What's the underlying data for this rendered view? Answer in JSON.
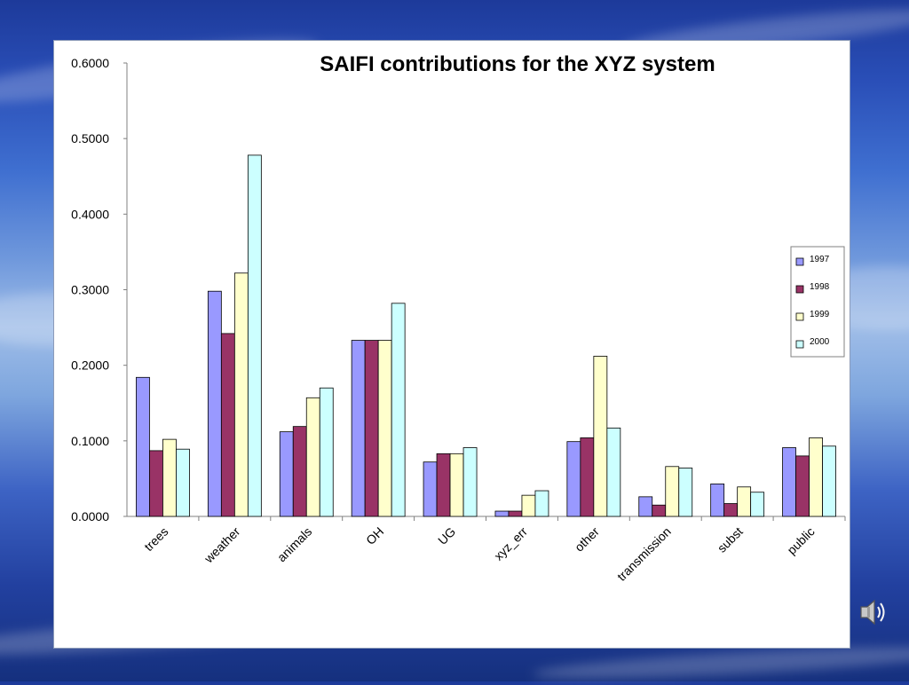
{
  "chart_data": {
    "type": "bar",
    "title": "SAIFI contributions for the XYZ system",
    "xlabel": "",
    "ylabel": "",
    "ylim": [
      0,
      0.6
    ],
    "y_ticks": [
      "0.0000",
      "0.1000",
      "0.2000",
      "0.3000",
      "0.4000",
      "0.5000",
      "0.6000"
    ],
    "categories": [
      "trees",
      "weather",
      "animals",
      "OH",
      "UG",
      "xyz_err",
      "other",
      "transmission",
      "subst",
      "public"
    ],
    "series": [
      {
        "name": "1997",
        "color": "#9999ff",
        "values": [
          0.184,
          0.298,
          0.112,
          0.233,
          0.072,
          0.007,
          0.099,
          0.026,
          0.043,
          0.091
        ]
      },
      {
        "name": "1998",
        "color": "#993366",
        "values": [
          0.087,
          0.242,
          0.119,
          0.233,
          0.083,
          0.007,
          0.104,
          0.015,
          0.017,
          0.08
        ]
      },
      {
        "name": "1999",
        "color": "#ffffcc",
        "values": [
          0.102,
          0.322,
          0.157,
          0.233,
          0.083,
          0.028,
          0.212,
          0.066,
          0.039,
          0.104
        ]
      },
      {
        "name": "2000",
        "color": "#ccffff",
        "values": [
          0.089,
          0.478,
          0.17,
          0.282,
          0.091,
          0.034,
          0.117,
          0.064,
          0.032,
          0.093
        ]
      }
    ],
    "legend_position": "right",
    "grid": false
  },
  "icons": {
    "speaker": "speaker-icon"
  }
}
